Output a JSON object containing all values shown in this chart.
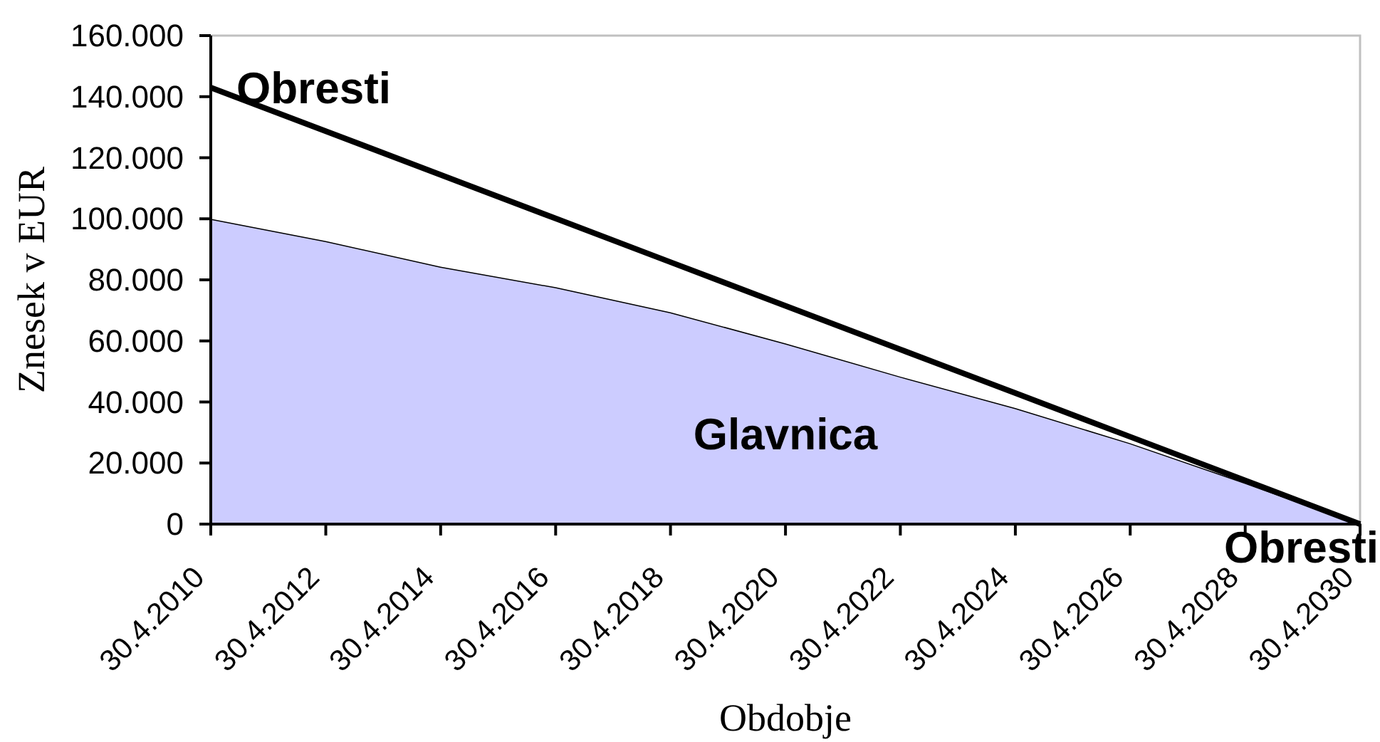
{
  "chart_data": {
    "type": "area",
    "stacked": true,
    "xlabel": "Obdobje",
    "ylabel": "Znesek v EUR",
    "x": [
      "2010-04-30",
      "2012-04-30",
      "2014-04-30",
      "2016-04-30",
      "2018-04-30",
      "2020-04-30",
      "2022-04-30",
      "2024-04-30",
      "2026-04-30",
      "2028-04-30",
      "2030-04-30"
    ],
    "series": [
      {
        "name": "Glavnica",
        "color": "#ccccff",
        "values": [
          100000,
          92700,
          84300,
          77600,
          69400,
          59200,
          48300,
          38000,
          26500,
          13500,
          0
        ]
      },
      {
        "name": "Obresti",
        "color": "#ffffff",
        "values": [
          43000,
          36000,
          30100,
          22500,
          16400,
          12300,
          8900,
          4900,
          2100,
          800,
          0
        ]
      }
    ],
    "xlim": [
      "2010-04-30",
      "2030-04-30"
    ],
    "xticks": [
      {
        "value": "2010-04-30",
        "label": "30.4.2010"
      },
      {
        "value": "2012-04-30",
        "label": "30.4.2012"
      },
      {
        "value": "2014-04-30",
        "label": "30.4.2014"
      },
      {
        "value": "2016-04-30",
        "label": "30.4.2016"
      },
      {
        "value": "2018-04-30",
        "label": "30.4.2018"
      },
      {
        "value": "2020-04-30",
        "label": "30.4.2020"
      },
      {
        "value": "2022-04-30",
        "label": "30.4.2022"
      },
      {
        "value": "2024-04-30",
        "label": "30.4.2024"
      },
      {
        "value": "2026-04-30",
        "label": "30.4.2026"
      },
      {
        "value": "2028-04-30",
        "label": "30.4.2028"
      },
      {
        "value": "2030-04-30",
        "label": "30.4.2030"
      }
    ],
    "ylim": [
      0,
      160000
    ],
    "yticks": [
      0,
      {
        "value": 20000,
        "label": "20.000"
      },
      {
        "value": 40000,
        "label": "40.000"
      },
      {
        "value": 60000,
        "label": "60.000"
      },
      {
        "value": 80000,
        "label": "80.000"
      },
      {
        "value": 100000,
        "label": "100.000"
      },
      {
        "value": 120000,
        "label": "120.000"
      },
      {
        "value": 140000,
        "label": "140.000"
      },
      {
        "value": 160000,
        "label": "160.000"
      }
    ],
    "annotations": [
      {
        "text": "Obresti",
        "x": "2030-04-30",
        "y": 0
      }
    ]
  }
}
